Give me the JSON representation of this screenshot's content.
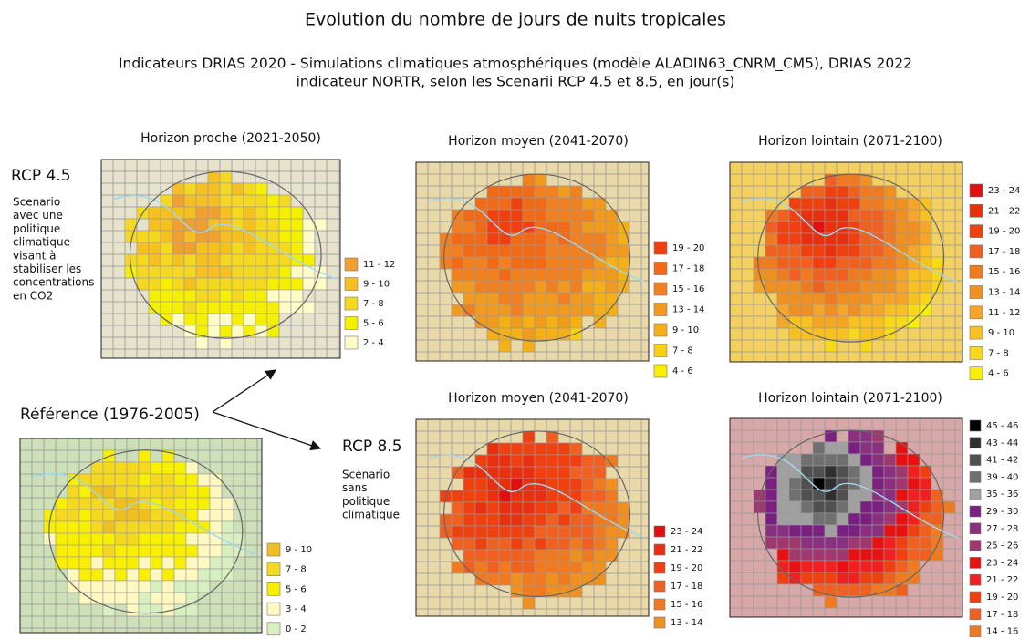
{
  "title": "Evolution du nombre de jours de nuits tropicales",
  "subtitle": [
    "Indicateurs DRIAS 2020 - Simulations climatiques atmosphériques (modèle ALADIN63_CNRM_CM5), DRIAS 2022",
    "indicateur NORTR, selon les Scenarii RCP 4.5 et 8.5, en jour(s)"
  ],
  "scenarios": [
    {
      "label": "RCP 4.5",
      "description": [
        "Scenario",
        "avec une",
        "politique",
        "climatique",
        "visant à",
        "stabiliser les",
        "concentrations",
        "en CO2"
      ]
    },
    {
      "label": "RCP 8.5",
      "description": [
        "Scénario",
        "sans",
        "politique",
        "climatique"
      ]
    }
  ],
  "reference": {
    "title": "Référence (1976-2005)",
    "legend": [
      {
        "label": "9 - 10",
        "color": "#f0c020"
      },
      {
        "label": "7 - 8",
        "color": "#f5d820"
      },
      {
        "label": "5 - 6",
        "color": "#f8f000"
      },
      {
        "label": "3 - 4",
        "color": "#fff8c0"
      },
      {
        "label": "0 - 2",
        "color": "#d8f0c0"
      }
    ]
  },
  "maps": [
    {
      "title": "Horizon proche (2021-2050)",
      "legend": [
        {
          "label": "11 - 12",
          "color": "#f0a030"
        },
        {
          "label": "9 - 10",
          "color": "#f5c020"
        },
        {
          "label": "7 - 8",
          "color": "#f5d820"
        },
        {
          "label": "5 - 6",
          "color": "#f5f000"
        },
        {
          "label": "2 - 4",
          "color": "#fffcc8"
        }
      ]
    },
    {
      "title": "Horizon moyen (2041-2070)",
      "legend": [
        {
          "label": "19 - 20",
          "color": "#f04010"
        },
        {
          "label": "17 - 18",
          "color": "#f06a18"
        },
        {
          "label": "15 - 16",
          "color": "#f08020"
        },
        {
          "label": "13 - 14",
          "color": "#f09a20"
        },
        {
          "label": "9 - 10",
          "color": "#f5b018"
        },
        {
          "label": "7 - 8",
          "color": "#f8d010"
        },
        {
          "label": "4 - 6",
          "color": "#f8f000"
        }
      ]
    },
    {
      "title": "Horizon lointain (2071-2100)",
      "legend": [
        {
          "label": "23 - 24",
          "color": "#e01010"
        },
        {
          "label": "21 - 22",
          "color": "#e83010"
        },
        {
          "label": "19 - 20",
          "color": "#f04010"
        },
        {
          "label": "17 - 18",
          "color": "#f06020"
        },
        {
          "label": "15 - 16",
          "color": "#f07a20"
        },
        {
          "label": "13 - 14",
          "color": "#f09020"
        },
        {
          "label": "11 - 12",
          "color": "#f5a528"
        },
        {
          "label": "9 - 10",
          "color": "#f8c020"
        },
        {
          "label": "7 - 8",
          "color": "#f8d818"
        },
        {
          "label": "4 - 6",
          "color": "#f8f000"
        }
      ]
    },
    {
      "title": "Horizon moyen (2041-2070)",
      "legend": [
        {
          "label": "23 - 24",
          "color": "#e01010"
        },
        {
          "label": "21 - 22",
          "color": "#e83010"
        },
        {
          "label": "19 - 20",
          "color": "#f04010"
        },
        {
          "label": "17 - 18",
          "color": "#f06020"
        },
        {
          "label": "15 - 16",
          "color": "#f07a20"
        },
        {
          "label": "13 - 14",
          "color": "#f09020"
        }
      ]
    },
    {
      "title": "Horizon lointain (2071-2100)",
      "legend": [
        {
          "label": "45 - 46",
          "color": "#000000"
        },
        {
          "label": "43 - 44",
          "color": "#303030"
        },
        {
          "label": "41 - 42",
          "color": "#505050"
        },
        {
          "label": "39 - 40",
          "color": "#707070"
        },
        {
          "label": "35 - 36",
          "color": "#a0a0a0"
        },
        {
          "label": "29 - 30",
          "color": "#7a2080"
        },
        {
          "label": "27 - 28",
          "color": "#8a3080"
        },
        {
          "label": "25 - 26",
          "color": "#a03870"
        },
        {
          "label": "23 - 24",
          "color": "#e81010"
        },
        {
          "label": "21 - 22",
          "color": "#f02020"
        },
        {
          "label": "19 - 20",
          "color": "#f04010"
        },
        {
          "label": "17 - 18",
          "color": "#f06020"
        },
        {
          "label": "14 - 16",
          "color": "#f07a20"
        }
      ]
    }
  ]
}
